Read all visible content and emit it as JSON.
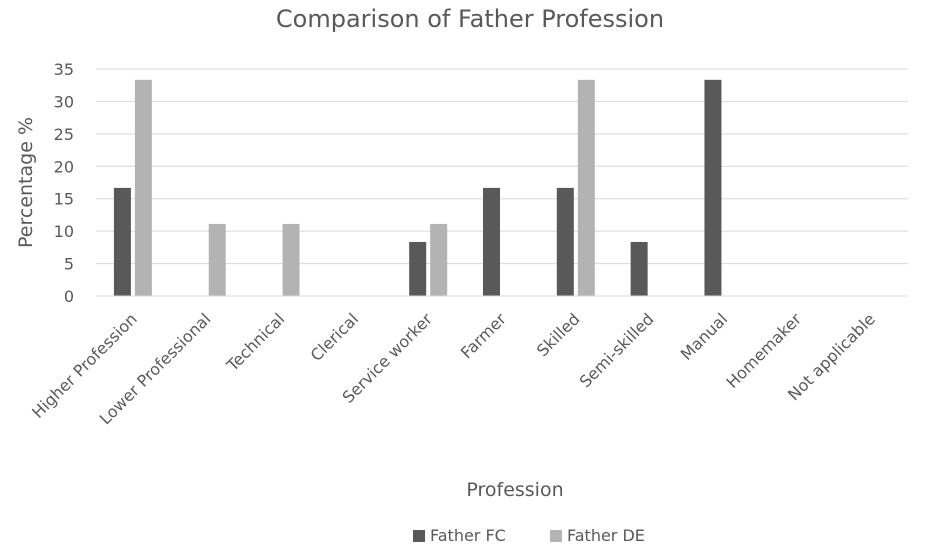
{
  "chart_data": {
    "type": "bar",
    "title": "Comparison of Father Profession",
    "xlabel": "Profession",
    "ylabel": "Percentage %",
    "ylim": [
      0,
      35
    ],
    "yticks": [
      0,
      5,
      10,
      15,
      20,
      25,
      30,
      35
    ],
    "grid": true,
    "legend_position": "bottom",
    "categories": [
      "Higher Profession",
      "Lower Professional",
      "Technical",
      "Clerical",
      "Service worker",
      "Farmer",
      "Skilled",
      "Semi-skilled",
      "Manual",
      "Homemaker",
      "Not applicable"
    ],
    "series": [
      {
        "name": "Father FC",
        "color": "#595959",
        "values": [
          16.67,
          0,
          0,
          0,
          8.33,
          16.67,
          16.67,
          8.33,
          33.33,
          0,
          0
        ]
      },
      {
        "name": "Father DE",
        "color": "#b3b3b3",
        "values": [
          33.33,
          11.11,
          11.11,
          0,
          11.11,
          0,
          33.33,
          0,
          0,
          0,
          0
        ]
      }
    ]
  }
}
